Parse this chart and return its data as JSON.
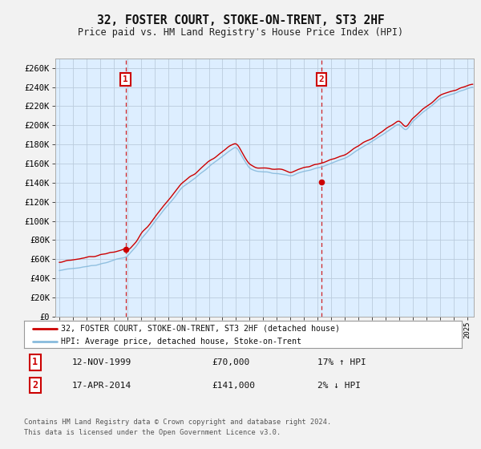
{
  "title": "32, FOSTER COURT, STOKE-ON-TRENT, ST3 2HF",
  "subtitle": "Price paid vs. HM Land Registry's House Price Index (HPI)",
  "ylabel_ticks": [
    "£0",
    "£20K",
    "£40K",
    "£60K",
    "£80K",
    "£100K",
    "£120K",
    "£140K",
    "£160K",
    "£180K",
    "£200K",
    "£220K",
    "£240K",
    "£260K"
  ],
  "ytick_values": [
    0,
    20000,
    40000,
    60000,
    80000,
    100000,
    120000,
    140000,
    160000,
    180000,
    200000,
    220000,
    240000,
    260000
  ],
  "ylim": [
    0,
    270000
  ],
  "xlim_start": 1994.7,
  "xlim_end": 2025.5,
  "purchase1_x": 1999.87,
  "purchase1_y": 70000,
  "purchase2_x": 2014.29,
  "purchase2_y": 141000,
  "purchase1_date": "12-NOV-1999",
  "purchase1_price": "£70,000",
  "purchase1_hpi": "17% ↑ HPI",
  "purchase2_date": "17-APR-2014",
  "purchase2_price": "£141,000",
  "purchase2_hpi": "2% ↓ HPI",
  "legend_line1": "32, FOSTER COURT, STOKE-ON-TRENT, ST3 2HF (detached house)",
  "legend_line2": "HPI: Average price, detached house, Stoke-on-Trent",
  "footer": "Contains HM Land Registry data © Crown copyright and database right 2024.\nThis data is licensed under the Open Government Licence v3.0.",
  "price_color": "#cc0000",
  "hpi_color": "#88bbdd",
  "background_color": "#ddeeff",
  "grid_color": "#bbccdd",
  "vline_color": "#cc0000",
  "box_color": "#cc0000",
  "fig_bg": "#f2f2f2"
}
